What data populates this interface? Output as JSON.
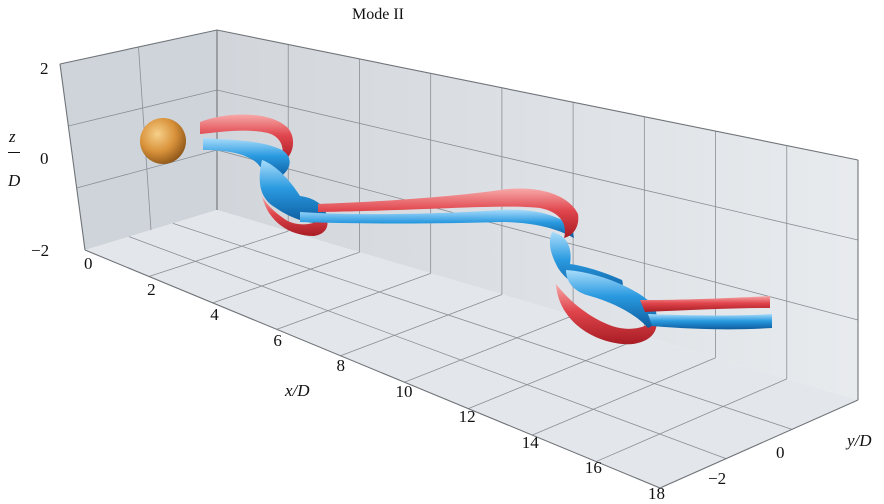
{
  "title": "Mode II",
  "z_axis": {
    "label_top": "z",
    "label_bottom": "D",
    "ticks": [
      "2",
      "0",
      "−2"
    ]
  },
  "x_axis": {
    "label": "x/D",
    "ticks": [
      "0",
      "2",
      "4",
      "6",
      "8",
      "10",
      "12",
      "14",
      "16",
      "18"
    ]
  },
  "y_axis": {
    "label": "y/D",
    "ticks": [
      "0",
      "−2"
    ]
  },
  "colors": {
    "sphere": "#d9923a",
    "vortex_red": "#e0454c",
    "vortex_blue": "#2a9ae0",
    "wall": "#dde1e6",
    "grid": "#8a8f95"
  }
}
